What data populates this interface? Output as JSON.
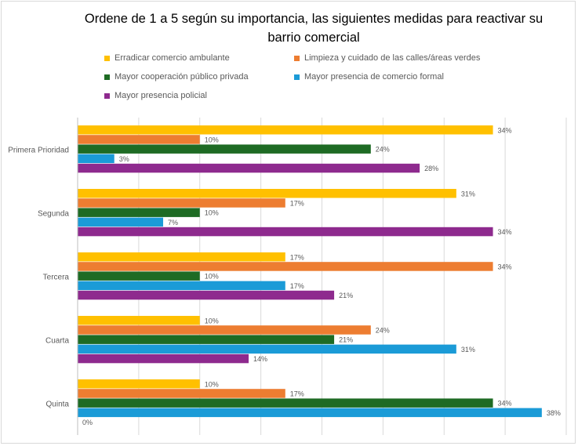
{
  "chart_data": {
    "type": "bar",
    "orientation": "horizontal",
    "title": "Ordene de  1 a 5 según su importancia, las siguientes medidas para reactivar su barrio comercial",
    "categories": [
      "Primera Prioridad",
      "Segunda",
      "Tercera",
      "Cuarta",
      "Quinta"
    ],
    "series": [
      {
        "name": "Erradicar comercio ambulante",
        "color": "#FFC000",
        "values": [
          34,
          31,
          17,
          10,
          10
        ],
        "labels": [
          "34%",
          "31%",
          "17%",
          "10%",
          "10%"
        ]
      },
      {
        "name": "Limpieza y cuidado de las calles/áreas verdes",
        "color": "#ED7D31",
        "values": [
          10,
          17,
          34,
          24,
          17
        ],
        "labels": [
          "10%",
          "17%",
          "34%",
          "24%",
          "17%"
        ]
      },
      {
        "name": "Mayor cooperación público privada",
        "color": "#1E6B24",
        "values": [
          24,
          10,
          10,
          21,
          34
        ],
        "labels": [
          "24%",
          "10%",
          "10%",
          "21%",
          "34%"
        ]
      },
      {
        "name": "Mayor presencia de comercio formal",
        "color": "#1B9BD7",
        "values": [
          3,
          7,
          17,
          31,
          38
        ],
        "labels": [
          "3%",
          "7%",
          "17%",
          "31%",
          "38%"
        ]
      },
      {
        "name": "Mayor presencia policial",
        "color": "#8E2A8E",
        "values": [
          28,
          34,
          21,
          14,
          0
        ],
        "labels": [
          "28%",
          "34%",
          "21%",
          "14%",
          "0%"
        ]
      }
    ],
    "xlim": [
      0,
      40
    ],
    "grid": true,
    "legend_position": "top"
  }
}
